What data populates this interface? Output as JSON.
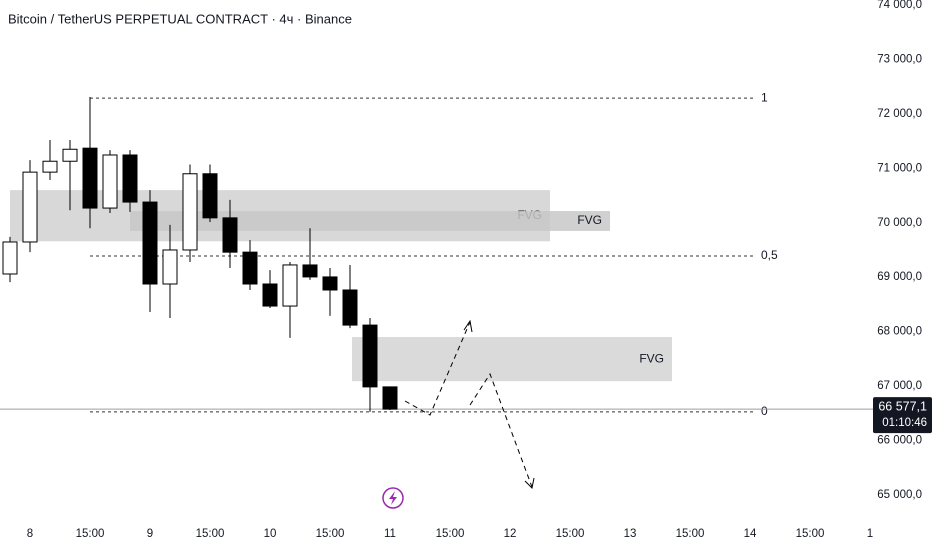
{
  "chart_data": {
    "type": "candlestick",
    "title": "Bitcoin / TetherUS PERPETUAL CONTRACT · 4ч · Binance",
    "x": [
      0,
      1,
      2,
      3,
      4,
      5,
      6,
      7,
      8,
      9,
      10,
      11,
      12,
      13,
      14,
      15,
      16,
      17,
      18,
      19
    ],
    "open": [
      69059,
      69647,
      70930,
      71130,
      71370,
      70270,
      71245,
      70380,
      68875,
      69500,
      70900,
      70090,
      69460,
      68875,
      68470,
      69225,
      69005,
      68765,
      68120,
      66985
    ],
    "high": [
      69740,
      71150,
      71520,
      71520,
      72310,
      71335,
      71335,
      70600,
      69960,
      71070,
      71070,
      70420,
      69680,
      69130,
      69280,
      69900,
      69170,
      69225,
      68250,
      66985
    ],
    "low": [
      68910,
      69460,
      70785,
      70230,
      69900,
      70180,
      70200,
      68360,
      68250,
      69280,
      70015,
      69170,
      68765,
      68435,
      67885,
      68950,
      68290,
      68065,
      66525,
      66560
    ],
    "close": [
      69647,
      70930,
      71130,
      71350,
      70270,
      71245,
      70380,
      68875,
      69500,
      70900,
      70090,
      69460,
      68875,
      68470,
      69225,
      69005,
      68765,
      68120,
      66985,
      66577.1
    ],
    "up_color": "#ffffff",
    "down_color": "#000000",
    "xlim": [
      -0.5,
      42.25
    ],
    "xticks": [
      {
        "value": 1,
        "label": "8"
      },
      {
        "value": 4,
        "label": "15:00"
      },
      {
        "value": 7,
        "label": "9"
      },
      {
        "value": 10,
        "label": "15:00"
      },
      {
        "value": 13,
        "label": "10"
      },
      {
        "value": 16,
        "label": "15:00"
      },
      {
        "value": 19,
        "label": "11"
      },
      {
        "value": 22,
        "label": "15:00"
      },
      {
        "value": 25,
        "label": "12"
      },
      {
        "value": 28,
        "label": "15:00"
      },
      {
        "value": 31,
        "label": "13"
      },
      {
        "value": 34,
        "label": "15:00"
      },
      {
        "value": 37,
        "label": "14"
      },
      {
        "value": 40,
        "label": "15:00"
      },
      {
        "value": 43,
        "label": "1"
      }
    ],
    "ylim": [
      64356,
      74092
    ],
    "yticks": [
      {
        "value": 65000,
        "label": "65 000,0"
      },
      {
        "value": 66000,
        "label": "66 000,0"
      },
      {
        "value": 67000,
        "label": "67 000,0"
      },
      {
        "value": 68000,
        "label": "68 000,0"
      },
      {
        "value": 69000,
        "label": "69 000,0"
      },
      {
        "value": 70000,
        "label": "70 000,0"
      },
      {
        "value": 71000,
        "label": "71 000,0"
      },
      {
        "value": 72000,
        "label": "72 000,0"
      },
      {
        "value": 73000,
        "label": "73 000,0"
      },
      {
        "value": 74000,
        "label": "74 000,0"
      }
    ],
    "levels": [
      {
        "label": "1",
        "value": 72290,
        "start": 4,
        "end": 37.25
      },
      {
        "label": "0,5",
        "value": 69390,
        "start": 4,
        "end": 37.25
      },
      {
        "label": "0",
        "value": 66525,
        "start": 4,
        "end": 37.25
      }
    ],
    "zones": [
      {
        "label": "FVG",
        "top": 70600,
        "bottom": 69660,
        "start": 0,
        "end": 27,
        "color": "#d1d1d1"
      },
      {
        "label": "FVG",
        "top": 70215,
        "bottom": 69850,
        "start": 6,
        "end": 30,
        "color": "#c8c8c8"
      },
      {
        "label": "FVG",
        "top": 67900,
        "bottom": 67090,
        "start": 17.1,
        "end": 33.1,
        "color": "#d3d3d3"
      }
    ],
    "last_price": {
      "value": 66577.1,
      "label": "66 577,1",
      "timer": "01:10:46"
    }
  }
}
